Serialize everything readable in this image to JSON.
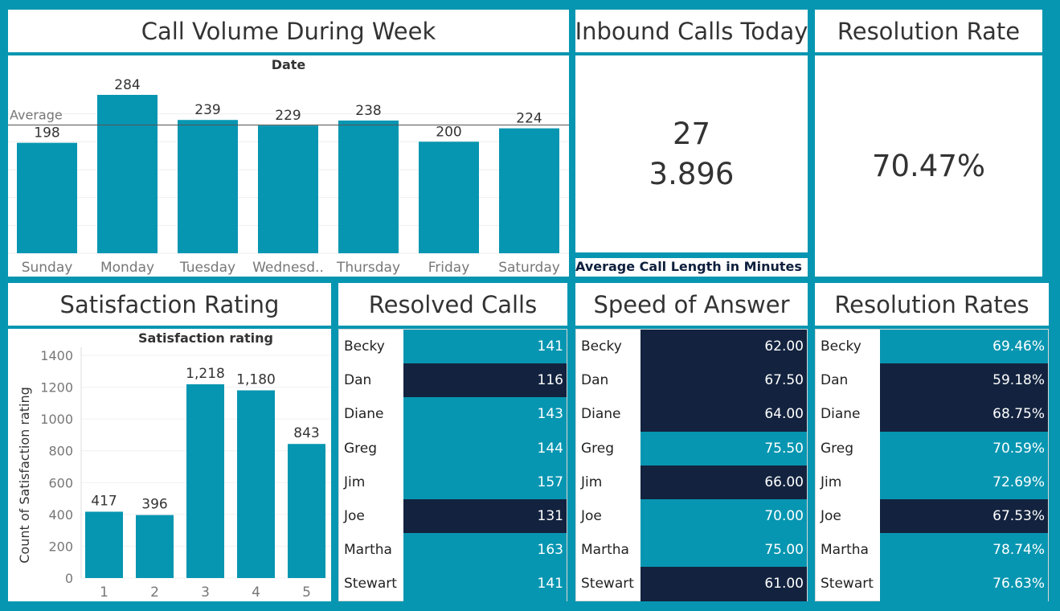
{
  "colors": {
    "bar": "#0796b1",
    "dark": "#13233f",
    "background": "#0796b1"
  },
  "call_volume": {
    "title": "Call Volume During Week",
    "header": "Date",
    "average_label": "Average",
    "chart_data": {
      "type": "bar",
      "title": "",
      "xlabel": "Date",
      "ylabel": "",
      "categories": [
        "Sunday",
        "Monday",
        "Tuesday",
        "Wednesd..",
        "Thursday",
        "Friday",
        "Saturday"
      ],
      "values": [
        198,
        284,
        239,
        229,
        238,
        200,
        224
      ],
      "value_labels": [
        "198",
        "284",
        "239",
        "229",
        "238",
        "200",
        "224"
      ],
      "reference_line": {
        "label": "Average",
        "value": 230
      },
      "ylim": [
        0,
        300
      ]
    }
  },
  "inbound": {
    "title": "Inbound Calls Today",
    "value": "27",
    "avg_length": "3.896",
    "caption": "Average Call Length in Minutes"
  },
  "resolution_rate": {
    "title": "Resolution Rate",
    "value": "70.47%"
  },
  "satisfaction": {
    "title": "Satisfaction Rating",
    "chart_data": {
      "type": "bar",
      "title": "Satisfaction rating",
      "xlabel": "",
      "ylabel": "Count of Satisfaction rating",
      "categories": [
        "1",
        "2",
        "3",
        "4",
        "5"
      ],
      "values": [
        417,
        396,
        1218,
        1180,
        843
      ],
      "value_labels": [
        "417",
        "396",
        "1,218",
        "1,180",
        "843"
      ],
      "ylim": [
        0,
        1400
      ],
      "yticks": [
        "0",
        "200",
        "400",
        "600",
        "800",
        "1000",
        "1200",
        "1400"
      ]
    }
  },
  "resolved_calls": {
    "title": "Resolved Calls",
    "rows": [
      {
        "name": "Becky",
        "value": "141",
        "dark": false
      },
      {
        "name": "Dan",
        "value": "116",
        "dark": true
      },
      {
        "name": "Diane",
        "value": "143",
        "dark": false
      },
      {
        "name": "Greg",
        "value": "144",
        "dark": false
      },
      {
        "name": "Jim",
        "value": "157",
        "dark": false
      },
      {
        "name": "Joe",
        "value": "131",
        "dark": true
      },
      {
        "name": "Martha",
        "value": "163",
        "dark": false
      },
      {
        "name": "Stewart",
        "value": "141",
        "dark": false
      }
    ]
  },
  "speed_of_answer": {
    "title": "Speed of Answer",
    "rows": [
      {
        "name": "Becky",
        "value": "62.00",
        "dark": true
      },
      {
        "name": "Dan",
        "value": "67.50",
        "dark": true
      },
      {
        "name": "Diane",
        "value": "64.00",
        "dark": true
      },
      {
        "name": "Greg",
        "value": "75.50",
        "dark": false
      },
      {
        "name": "Jim",
        "value": "66.00",
        "dark": true
      },
      {
        "name": "Joe",
        "value": "70.00",
        "dark": false
      },
      {
        "name": "Martha",
        "value": "75.00",
        "dark": false
      },
      {
        "name": "Stewart",
        "value": "61.00",
        "dark": true
      }
    ]
  },
  "resolution_rates": {
    "title": "Resolution Rates",
    "rows": [
      {
        "name": "Becky",
        "value": "69.46%",
        "dark": false
      },
      {
        "name": "Dan",
        "value": "59.18%",
        "dark": true
      },
      {
        "name": "Diane",
        "value": "68.75%",
        "dark": true
      },
      {
        "name": "Greg",
        "value": "70.59%",
        "dark": false
      },
      {
        "name": "Jim",
        "value": "72.69%",
        "dark": false
      },
      {
        "name": "Joe",
        "value": "67.53%",
        "dark": true
      },
      {
        "name": "Martha",
        "value": "78.74%",
        "dark": false
      },
      {
        "name": "Stewart",
        "value": "76.63%",
        "dark": false
      }
    ]
  }
}
